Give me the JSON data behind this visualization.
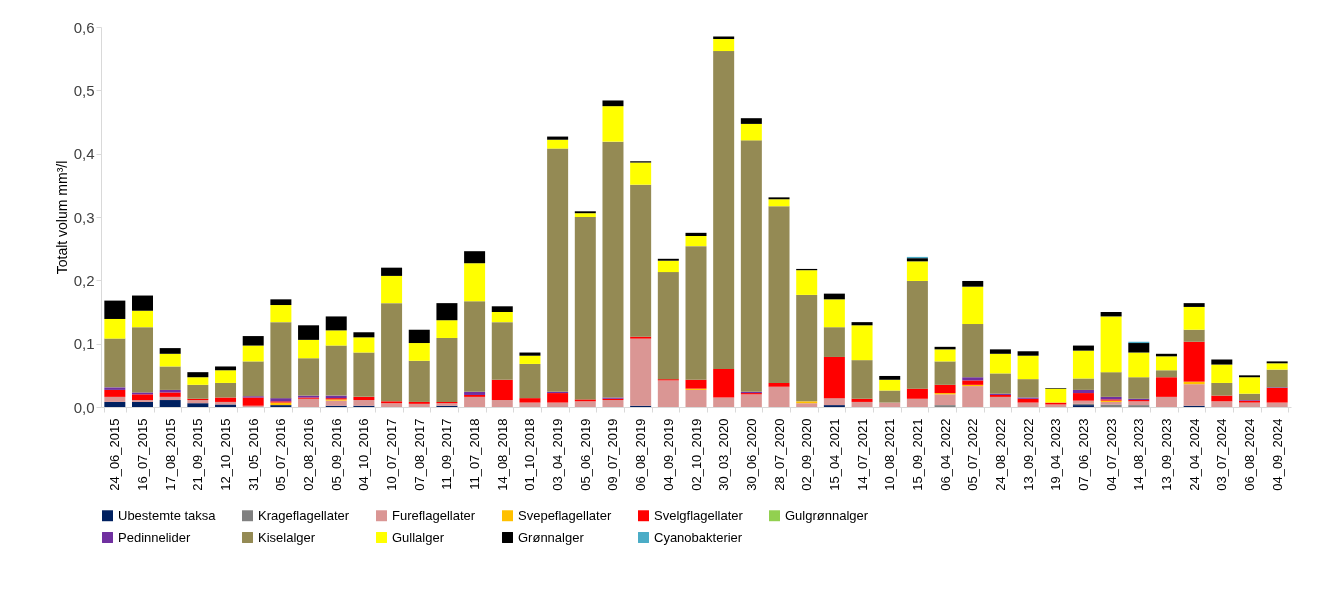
{
  "chart_data": {
    "type": "bar",
    "stacked": true,
    "ylabel": "Totalt volum mm³/l",
    "categories": [
      "24_06_2015",
      "16_07_2015",
      "17_08_2015",
      "21_09_2015",
      "12_10_2015",
      "31_05_2016",
      "05_07_2016",
      "02_08_2016",
      "05_09_2016",
      "04_10_2016",
      "10_07_2017",
      "07_08_2017",
      "11_09_2017",
      "11_07_2018",
      "14_08_2018",
      "01_10_2018",
      "03_04_2019",
      "05_06_2019",
      "09_07_2019",
      "06_08_2019",
      "04_09_2019",
      "02_10_2019",
      "30_03_2020",
      "30_06_2020",
      "28_07_2020",
      "02_09_2020",
      "15_04_2021",
      "14_07_2021",
      "10_08_2021",
      "15_09_2021",
      "06_04_2022",
      "05_07_2022",
      "24_08_2022",
      "13_09_2022",
      "19_04_2023",
      "07_06_2023",
      "04_07_2023",
      "14_08_2023",
      "13_09_2023",
      "24_04_2024",
      "03_07_2024",
      "06_08_2024",
      "04_09_2024"
    ],
    "ylim": [
      0,
      0.6
    ],
    "yticks": [
      {
        "value": 0,
        "label": "0,0"
      },
      {
        "value": 0.1,
        "label": "0,1"
      },
      {
        "value": 0.2,
        "label": "0,2"
      },
      {
        "value": 0.3,
        "label": "0,3"
      },
      {
        "value": 0.4,
        "label": "0,4"
      },
      {
        "value": 0.5,
        "label": "0,5"
      },
      {
        "value": 0.6,
        "label": "0,6"
      }
    ],
    "grid": false,
    "legend": "bottom",
    "series": [
      {
        "name": "Ubestemte taksa",
        "color": "#002060",
        "values": [
          0.008,
          0.008,
          0.011,
          0.006,
          0.004,
          0,
          0.003,
          0,
          0.002,
          0.002,
          0,
          0,
          0.002,
          0,
          0,
          0,
          0,
          0,
          0,
          0.002,
          0,
          0,
          0,
          0,
          0,
          0,
          0.003,
          0,
          0,
          0,
          0,
          0,
          0,
          0,
          0,
          0.003,
          0,
          0,
          0,
          0.002,
          0,
          0,
          0
        ]
      },
      {
        "name": "Krageflagellater",
        "color": "#808080",
        "values": [
          0,
          0,
          0,
          0,
          0,
          0,
          0,
          0,
          0,
          0,
          0,
          0,
          0,
          0,
          0,
          0,
          0,
          0,
          0,
          0,
          0,
          0,
          0,
          0,
          0,
          0,
          0,
          0,
          0,
          0,
          0.003,
          0,
          0,
          0,
          0,
          0.002,
          0.004,
          0.003,
          0,
          0,
          0,
          0,
          0
        ]
      },
      {
        "name": "Fureflagellater",
        "color": "#da9694",
        "values": [
          0.008,
          0.003,
          0.005,
          0.005,
          0.004,
          0.002,
          0,
          0.013,
          0.008,
          0.009,
          0.006,
          0.005,
          0.004,
          0.016,
          0.011,
          0.007,
          0.007,
          0.009,
          0.011,
          0.106,
          0.042,
          0.027,
          0.015,
          0.02,
          0.032,
          0.006,
          0.011,
          0.008,
          0.007,
          0.013,
          0.017,
          0.033,
          0.016,
          0.007,
          0.004,
          0.005,
          0.004,
          0.006,
          0.016,
          0.034,
          0.009,
          0.007,
          0.007
        ]
      },
      {
        "name": "Svepeflagellater",
        "color": "#ffc000",
        "values": [
          0,
          0,
          0,
          0,
          0,
          0,
          0.004,
          0,
          0.002,
          0,
          0,
          0,
          0,
          0,
          0,
          0,
          0,
          0,
          0,
          0,
          0,
          0.002,
          0,
          0,
          0,
          0.003,
          0,
          0,
          0,
          0,
          0.002,
          0.002,
          0,
          0,
          0,
          0,
          0.002,
          0,
          0,
          0.004,
          0,
          0,
          0
        ]
      },
      {
        "name": "Svelgflagellater",
        "color": "#ff0000",
        "values": [
          0.011,
          0.009,
          0.007,
          0.002,
          0.007,
          0.013,
          0.002,
          0.002,
          0.002,
          0.005,
          0.003,
          0.003,
          0.002,
          0.003,
          0.032,
          0.007,
          0.015,
          0.003,
          0.002,
          0.003,
          0.002,
          0.014,
          0.045,
          0.002,
          0.006,
          0,
          0.065,
          0.005,
          0,
          0.016,
          0.013,
          0.007,
          0.003,
          0.006,
          0.003,
          0.012,
          0.002,
          0.002,
          0.031,
          0.063,
          0.009,
          0.003,
          0.023
        ]
      },
      {
        "name": "Gulgrønnalger",
        "color": "#92d050",
        "values": [
          0,
          0,
          0,
          0,
          0,
          0,
          0,
          0,
          0,
          0,
          0,
          0,
          0,
          0,
          0,
          0,
          0,
          0,
          0,
          0,
          0,
          0,
          0,
          0,
          0,
          0,
          0,
          0,
          0,
          0,
          0,
          0,
          0,
          0,
          0,
          0,
          0,
          0,
          0,
          0,
          0,
          0,
          0
        ]
      },
      {
        "name": "Pedinnelider",
        "color": "#7030a0",
        "values": [
          0.004,
          0.003,
          0.004,
          0,
          0,
          0.002,
          0.005,
          0.003,
          0.004,
          0,
          0,
          0,
          0,
          0.005,
          0,
          0,
          0.002,
          0,
          0.002,
          0,
          0,
          0,
          0,
          0.002,
          0,
          0,
          0,
          0,
          0,
          0,
          0,
          0.005,
          0.002,
          0.002,
          0,
          0.005,
          0.004,
          0.002,
          0,
          0,
          0,
          0.001,
          0.001
        ]
      },
      {
        "name": "Kiselalger",
        "color": "#948a54",
        "values": [
          0.077,
          0.103,
          0.037,
          0.022,
          0.023,
          0.055,
          0.12,
          0.059,
          0.079,
          0.07,
          0.155,
          0.065,
          0.101,
          0.143,
          0.091,
          0.054,
          0.384,
          0.288,
          0.404,
          0.24,
          0.169,
          0.211,
          0.502,
          0.397,
          0.279,
          0.168,
          0.047,
          0.061,
          0.019,
          0.17,
          0.037,
          0.084,
          0.032,
          0.029,
          0,
          0.018,
          0.039,
          0.034,
          0.011,
          0.019,
          0.02,
          0.01,
          0.028
        ]
      },
      {
        "name": "Gullalger",
        "color": "#ffff00",
        "values": [
          0.031,
          0.026,
          0.02,
          0.012,
          0.02,
          0.025,
          0.027,
          0.029,
          0.024,
          0.024,
          0.043,
          0.028,
          0.028,
          0.06,
          0.016,
          0.013,
          0.014,
          0.006,
          0.056,
          0.035,
          0.018,
          0.016,
          0.019,
          0.026,
          0.011,
          0.039,
          0.044,
          0.055,
          0.017,
          0.031,
          0.019,
          0.059,
          0.031,
          0.037,
          0.022,
          0.044,
          0.088,
          0.039,
          0.022,
          0.036,
          0.029,
          0.026,
          0.01
        ]
      },
      {
        "name": "Grønnalger",
        "color": "#000000",
        "values": [
          0.029,
          0.024,
          0.009,
          0.008,
          0.006,
          0.015,
          0.009,
          0.023,
          0.022,
          0.008,
          0.013,
          0.021,
          0.027,
          0.019,
          0.009,
          0.005,
          0.005,
          0.003,
          0.009,
          0.002,
          0.003,
          0.005,
          0.004,
          0.009,
          0.003,
          0.002,
          0.009,
          0.005,
          0.006,
          0.005,
          0.004,
          0.009,
          0.007,
          0.007,
          0.001,
          0.008,
          0.007,
          0.015,
          0.004,
          0.006,
          0.008,
          0.003,
          0.003
        ]
      },
      {
        "name": "Cyanobakterier",
        "color": "#4bacc6",
        "values": [
          0,
          0,
          0,
          0,
          0,
          0,
          0,
          0,
          0,
          0,
          0,
          0,
          0,
          0,
          0,
          0,
          0,
          0,
          0,
          0,
          0,
          0,
          0,
          0,
          0,
          0,
          0,
          0,
          0,
          0.002,
          0,
          0,
          0,
          0,
          0,
          0,
          0,
          0.002,
          0,
          0,
          0,
          0,
          0
        ]
      }
    ]
  }
}
